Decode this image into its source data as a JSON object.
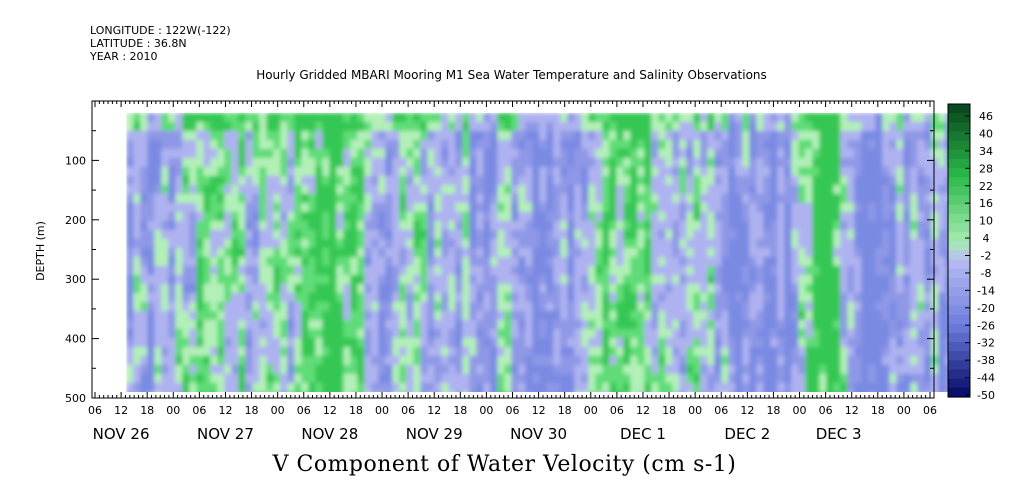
{
  "header": {
    "longitude": "LONGITUDE : 122W(-122)",
    "latitude": "LATITUDE : 36.8N",
    "year": "YEAR : 2010",
    "title": "Hourly Gridded MBARI Mooring M1 Sea Water Temperature and Salinity Observations"
  },
  "chart_data": {
    "type": "heatmap",
    "title": "Hourly Gridded MBARI Mooring M1 Sea Water Temperature and Salinity Observations",
    "xlabel": "V Component of Water Velocity (cm s-1)",
    "ylabel": "DEPTH (m)",
    "ylim": [
      500,
      0
    ],
    "y_ticks": [
      100,
      200,
      300,
      400,
      500
    ],
    "x_hour_labels": [
      "06",
      "12",
      "18",
      "00",
      "06",
      "12",
      "18",
      "00",
      "06",
      "12",
      "18",
      "00",
      "06",
      "12",
      "18",
      "00",
      "06",
      "12",
      "18",
      "00",
      "06",
      "12",
      "18",
      "00",
      "06",
      "12",
      "18",
      "00",
      "06",
      "12",
      "18",
      "00",
      "06"
    ],
    "x_date_labels": [
      {
        "label": "NOV 26",
        "hour_index": 1
      },
      {
        "label": "NOV 27",
        "hour_index": 5
      },
      {
        "label": "NOV 28",
        "hour_index": 9
      },
      {
        "label": "NOV 29",
        "hour_index": 13
      },
      {
        "label": "NOV 30",
        "hour_index": 17
      },
      {
        "label": "DEC  1",
        "hour_index": 21
      },
      {
        "label": "DEC  2",
        "hour_index": 25
      },
      {
        "label": "DEC  3",
        "hour_index": 28.5
      }
    ],
    "data_depth_range": [
      20,
      490
    ],
    "data_time_range_hour_index": [
      1.2,
      32.9
    ],
    "colorbar": {
      "labels": [
        "46",
        "40",
        "34",
        "28",
        "22",
        "16",
        "10",
        "4",
        "-2",
        "-8",
        "-14",
        "-20",
        "-26",
        "-32",
        "-38",
        "-44",
        "-50"
      ],
      "colors": {
        "pos_dark": "#0b4a1d",
        "pos_mid": "#2ab84a",
        "pos_light": "#a6ecb1",
        "neg_light": "#b9bdf3",
        "neg_mid": "#6c7ddd",
        "neg_dark": "#0a0f6c"
      }
    },
    "field_dominant_colors": [
      "#aeb2f0",
      "#8f98e6",
      "#7a8ae2",
      "#b2f0b8",
      "#5fdc77",
      "#35c753"
    ]
  }
}
